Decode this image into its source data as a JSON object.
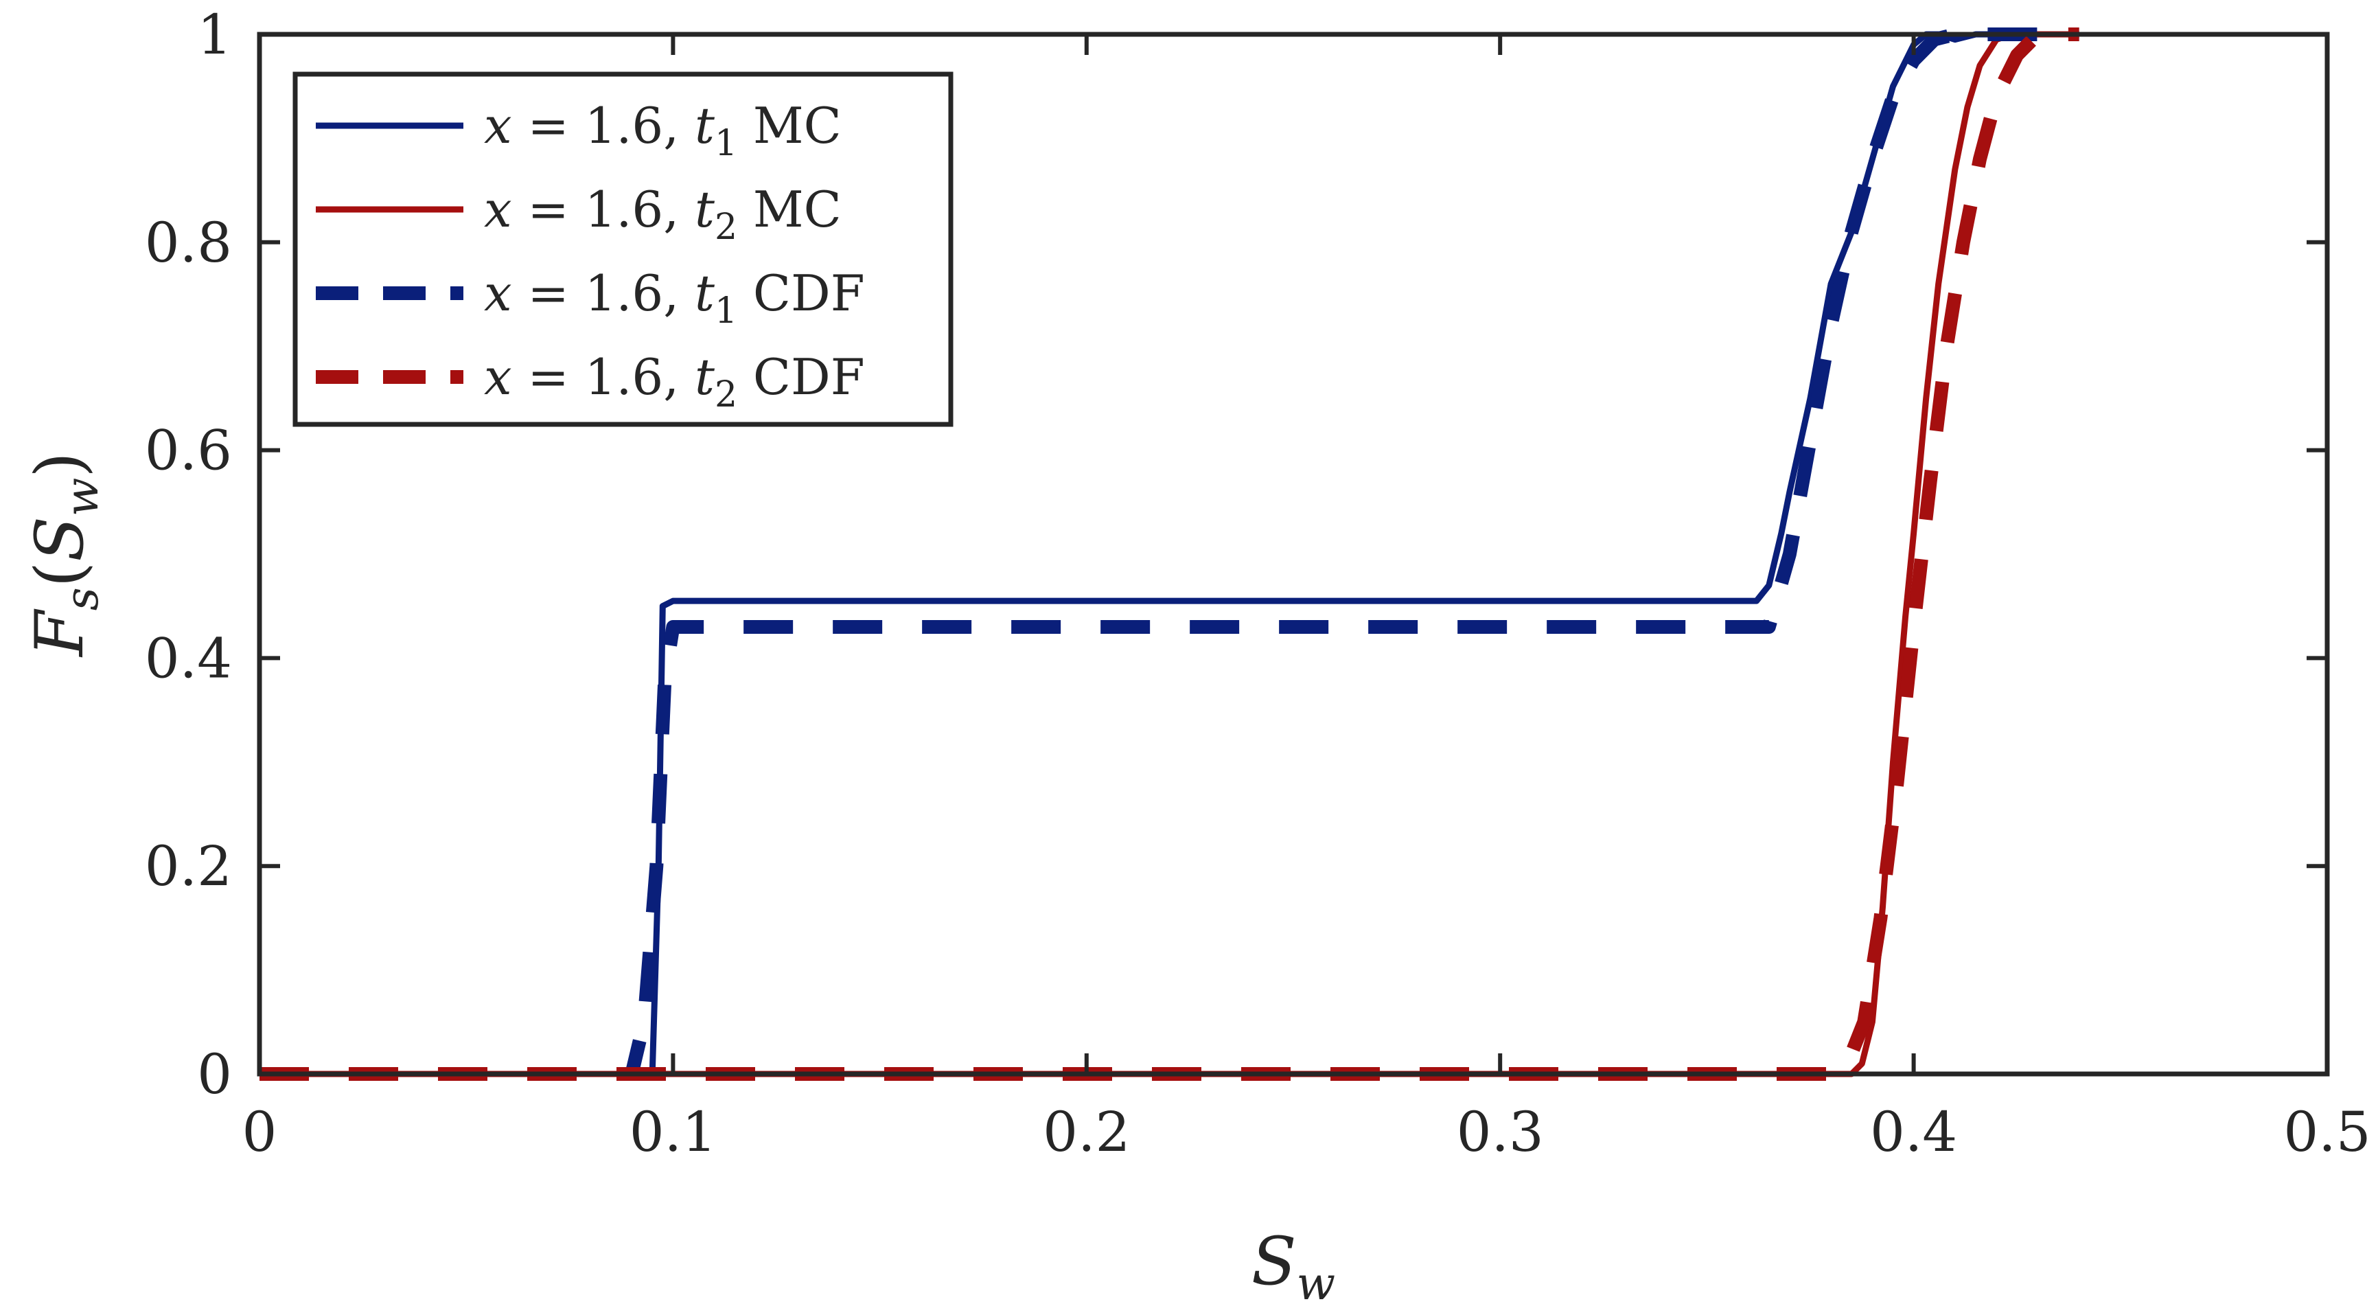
{
  "chart_data": {
    "type": "line",
    "title": "",
    "xlabel": "S_w",
    "ylabel": "F_s(S_w)",
    "xlim": [
      0,
      0.5
    ],
    "ylim": [
      0,
      1
    ],
    "x_ticks": [
      0,
      0.1,
      0.2,
      0.3,
      0.4,
      0.5
    ],
    "y_ticks": [
      0,
      0.2,
      0.4,
      0.6,
      0.8,
      1
    ],
    "x_tick_labels": [
      "0",
      "0.1",
      "0.2",
      "0.3",
      "0.4",
      "0.5"
    ],
    "y_tick_labels": [
      "0",
      "0.2",
      "0.4",
      "0.6",
      "0.8",
      "1"
    ],
    "grid": false,
    "legend_position": "top-left",
    "series": [
      {
        "name": "x = 1.6, t1 MC",
        "legend_main": "x = 1.6, t",
        "legend_sub": "1",
        "legend_tail": " MC",
        "color": "#0a1f7a",
        "style": "solid",
        "x": [
          0.0,
          0.09,
          0.095,
          0.0965,
          0.0975,
          0.1,
          0.105,
          0.2,
          0.3,
          0.362,
          0.365,
          0.368,
          0.37,
          0.375,
          0.38,
          0.385,
          0.39,
          0.395,
          0.4,
          0.403,
          0.406,
          0.41,
          0.415,
          0.42,
          0.44
        ],
        "y": [
          0.0,
          0.0,
          0.002,
          0.2,
          0.45,
          0.455,
          0.455,
          0.455,
          0.455,
          0.455,
          0.47,
          0.52,
          0.56,
          0.65,
          0.76,
          0.81,
          0.88,
          0.95,
          0.99,
          1.0,
          1.0,
          0.995,
          1.0,
          1.0,
          1.0
        ]
      },
      {
        "name": "x = 1.6, t2 MC",
        "legend_main": "x = 1.6, t",
        "legend_sub": "2",
        "legend_tail": " MC",
        "color": "#a50f0f",
        "style": "solid",
        "x": [
          0.0,
          0.385,
          0.3875,
          0.39,
          0.3925,
          0.395,
          0.398,
          0.4,
          0.403,
          0.406,
          0.41,
          0.413,
          0.416,
          0.42,
          0.424,
          0.44
        ],
        "y": [
          0.0,
          0.0,
          0.01,
          0.05,
          0.16,
          0.3,
          0.44,
          0.52,
          0.65,
          0.76,
          0.87,
          0.93,
          0.97,
          0.995,
          1.0,
          1.0
        ]
      },
      {
        "name": "x = 1.6, t1 CDF",
        "legend_main": "x = 1.6, t",
        "legend_sub": "1",
        "legend_tail": " CDF",
        "color": "#0a1f7a",
        "style": "dashed",
        "x": [
          0.0,
          0.09,
          0.093,
          0.096,
          0.098,
          0.1,
          0.102,
          0.2,
          0.3,
          0.365,
          0.37,
          0.375,
          0.38,
          0.385,
          0.39,
          0.395,
          0.4,
          0.405,
          0.41,
          0.415,
          0.42,
          0.44
        ],
        "y": [
          0.0,
          0.0,
          0.05,
          0.2,
          0.38,
          0.43,
          0.43,
          0.43,
          0.43,
          0.43,
          0.5,
          0.61,
          0.72,
          0.81,
          0.88,
          0.94,
          0.975,
          0.995,
          1.0,
          1.0,
          1.0,
          1.0
        ]
      },
      {
        "name": "x = 1.6, t2 CDF",
        "legend_main": "x = 1.6, t",
        "legend_sub": "2",
        "legend_tail": " CDF",
        "color": "#a50f0f",
        "style": "dashed",
        "x": [
          0.0,
          0.38,
          0.384,
          0.388,
          0.392,
          0.396,
          0.4,
          0.404,
          0.408,
          0.412,
          0.416,
          0.42,
          0.425,
          0.43,
          0.44
        ],
        "y": [
          0.0,
          0.0,
          0.01,
          0.05,
          0.15,
          0.28,
          0.43,
          0.57,
          0.7,
          0.8,
          0.88,
          0.94,
          0.98,
          1.0,
          1.0
        ]
      }
    ]
  }
}
